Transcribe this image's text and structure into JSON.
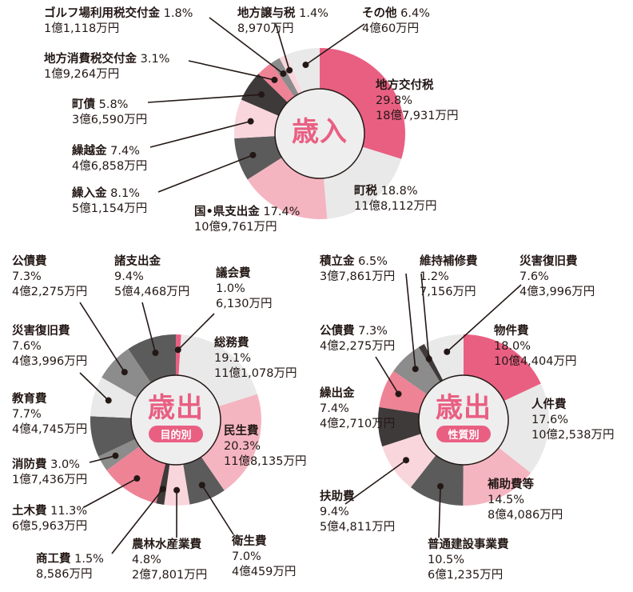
{
  "colors": {
    "pink": "#e95f82",
    "light_gray": "#e9e9e9",
    "light_pink": "#f4b5c1",
    "dark_gray": "#5b5b5b",
    "pale_pink": "#f9d5dc",
    "near_black": "#3e3a39",
    "mid_pink": "#ee8396",
    "gray": "#8c8c8c",
    "center": "#eeeeee"
  },
  "chart_data": [
    {
      "type": "pie",
      "title": "歳入",
      "slices": [
        {
          "label": "地方交付税",
          "pct": "29.8%",
          "value": 29.8,
          "amount": "18億7,931万円",
          "color": "pink"
        },
        {
          "label": "町税",
          "pct": "18.8%",
          "value": 18.8,
          "amount": "11億8,112万円",
          "color": "light_gray"
        },
        {
          "label": "国•県支出金",
          "pct": "17.4%",
          "value": 17.4,
          "amount": "10億9,761万円",
          "color": "light_pink"
        },
        {
          "label": "繰入金",
          "pct": "8.1%",
          "value": 8.1,
          "amount": "5億1,154万円",
          "color": "dark_gray"
        },
        {
          "label": "繰越金",
          "pct": "7.4%",
          "value": 7.4,
          "amount": "4億6,858万円",
          "color": "pale_pink"
        },
        {
          "label": "町債",
          "pct": "5.8%",
          "value": 5.8,
          "amount": "3億6,590万円",
          "color": "near_black"
        },
        {
          "label": "地方消費税交付金",
          "pct": "3.1%",
          "value": 3.1,
          "amount": "1億9,264万円",
          "color": "mid_pink"
        },
        {
          "label": "ゴルフ場利用税交付金",
          "pct": "1.8%",
          "value": 1.8,
          "amount": "1億1,118万円",
          "color": "gray"
        },
        {
          "label": "地方譲与税",
          "pct": "1.4%",
          "value": 1.4,
          "amount": "8,970万円",
          "color": "pale_pink"
        },
        {
          "label": "その他",
          "pct": "6.4%",
          "value": 6.4,
          "amount": "4億60万円",
          "color": "light_gray"
        }
      ]
    },
    {
      "type": "pie",
      "title": "歳出",
      "subtitle": "目的別",
      "slices": [
        {
          "label": "議会費",
          "pct": "1.0%",
          "value": 1.0,
          "amount": "6,130万円",
          "color": "pink"
        },
        {
          "label": "総務費",
          "pct": "19.1%",
          "value": 19.1,
          "amount": "11億1,078万円",
          "color": "light_gray"
        },
        {
          "label": "民生費",
          "pct": "20.3%",
          "value": 20.3,
          "amount": "11億8,135万円",
          "color": "light_pink"
        },
        {
          "label": "衛生費",
          "pct": "7.0%",
          "value": 7.0,
          "amount": "4億459万円",
          "color": "dark_gray"
        },
        {
          "label": "農林水産業費",
          "pct": "4.8%",
          "value": 4.8,
          "amount": "2億7,801万円",
          "color": "pale_pink"
        },
        {
          "label": "商工費",
          "pct": "1.5%",
          "value": 1.5,
          "amount": "8,586万円",
          "color": "near_black"
        },
        {
          "label": "土木費",
          "pct": "11.3%",
          "value": 11.3,
          "amount": "6億5,963万円",
          "color": "mid_pink"
        },
        {
          "label": "消防費",
          "pct": "3.0%",
          "value": 3.0,
          "amount": "1億7,436万円",
          "color": "gray"
        },
        {
          "label": "教育費",
          "pct": "7.7%",
          "value": 7.7,
          "amount": "4億4,745万円",
          "color": "dark_gray"
        },
        {
          "label": "災害復旧費",
          "pct": "7.6%",
          "value": 7.6,
          "amount": "4億3,996万円",
          "color": "light_gray"
        },
        {
          "label": "公債費",
          "pct": "7.3%",
          "value": 7.3,
          "amount": "4億2,275万円",
          "color": "gray"
        },
        {
          "label": "諸支出金",
          "pct": "9.4%",
          "value": 9.4,
          "amount": "5億4,468万円",
          "color": "dark_gray"
        }
      ]
    },
    {
      "type": "pie",
      "title": "歳出",
      "subtitle": "性質別",
      "slices": [
        {
          "label": "物件費",
          "pct": "18.0%",
          "value": 18.0,
          "amount": "10億4,404万円",
          "color": "pink"
        },
        {
          "label": "人件費",
          "pct": "17.6%",
          "value": 17.6,
          "amount": "10億2,538万円",
          "color": "light_gray"
        },
        {
          "label": "補助費等",
          "pct": "14.5%",
          "value": 14.5,
          "amount": "8億4,086万円",
          "color": "light_pink"
        },
        {
          "label": "普通建設事業費",
          "pct": "10.5%",
          "value": 10.5,
          "amount": "6億1,235万円",
          "color": "dark_gray"
        },
        {
          "label": "扶助費",
          "pct": "9.4%",
          "value": 9.4,
          "amount": "5億4,811万円",
          "color": "pale_pink"
        },
        {
          "label": "繰出金",
          "pct": "7.4%",
          "value": 7.4,
          "amount": "4億2,710万円",
          "color": "near_black"
        },
        {
          "label": "公債費",
          "pct": "7.3%",
          "value": 7.3,
          "amount": "4億2,275万円",
          "color": "mid_pink"
        },
        {
          "label": "積立金",
          "pct": "6.5%",
          "value": 6.5,
          "amount": "3億7,861万円",
          "color": "gray"
        },
        {
          "label": "維持補修費",
          "pct": "1.2%",
          "value": 1.2,
          "amount": "7,156万円",
          "color": "near_black"
        },
        {
          "label": "災害復旧費",
          "pct": "7.6%",
          "value": 7.6,
          "amount": "4億3,996万円",
          "color": "light_gray"
        }
      ]
    }
  ]
}
